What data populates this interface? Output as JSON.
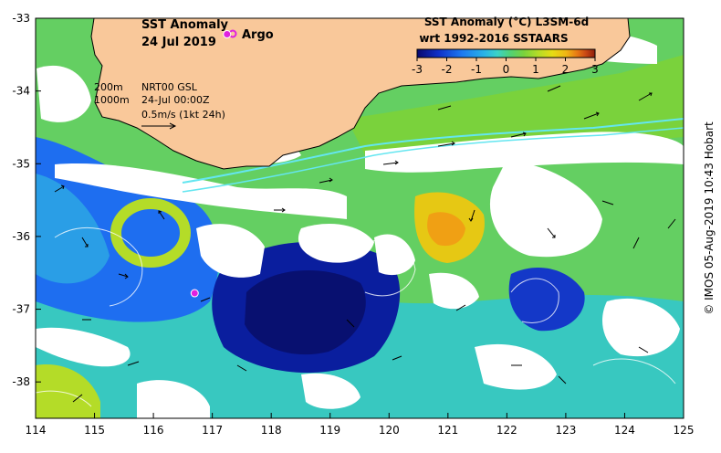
{
  "map": {
    "title": "SST Anomaly",
    "date": "24 Jul 2019",
    "argo_label": "Argo",
    "legend": {
      "title_line1": "SST Anomaly (°C) L3SM-6d",
      "title_line2": "wrt 1992-2016 SSTAARS",
      "ticks": [
        "-3",
        "-2",
        "-1",
        "0",
        "1",
        "2",
        "3"
      ],
      "colors": [
        "#08086e",
        "#1030c8",
        "#1e78f0",
        "#2ab4e6",
        "#3cd2c8",
        "#50d278",
        "#7ad23c",
        "#b4dc28",
        "#e6dc14",
        "#f0b414",
        "#e67814",
        "#c84614",
        "#8c1e0a"
      ]
    },
    "info": {
      "contour1": "200m",
      "contour2": "1000m",
      "product": "NRT00 GSL",
      "time": "24-Jul 00:00Z",
      "scale": "0.5m/s (1kt 24h)"
    },
    "credit": "© IMOS 05-Aug-2019 10:43 Hobart",
    "x_ticks": [
      "114",
      "115",
      "116",
      "117",
      "118",
      "119",
      "120",
      "121",
      "122",
      "123",
      "124",
      "125"
    ],
    "y_ticks": [
      "-33",
      "-34",
      "-35",
      "-36",
      "-37",
      "-38"
    ],
    "lon_range": [
      114,
      125
    ],
    "lat_range": [
      -38.5,
      -33
    ],
    "argo_floats": [
      {
        "lon": 117.25,
        "lat": -33.22
      },
      {
        "lon": 116.7,
        "lat": -36.78
      }
    ],
    "colors": {
      "land": "#f9c89a",
      "coast": "#000000",
      "argo": "#e020e0"
    }
  }
}
